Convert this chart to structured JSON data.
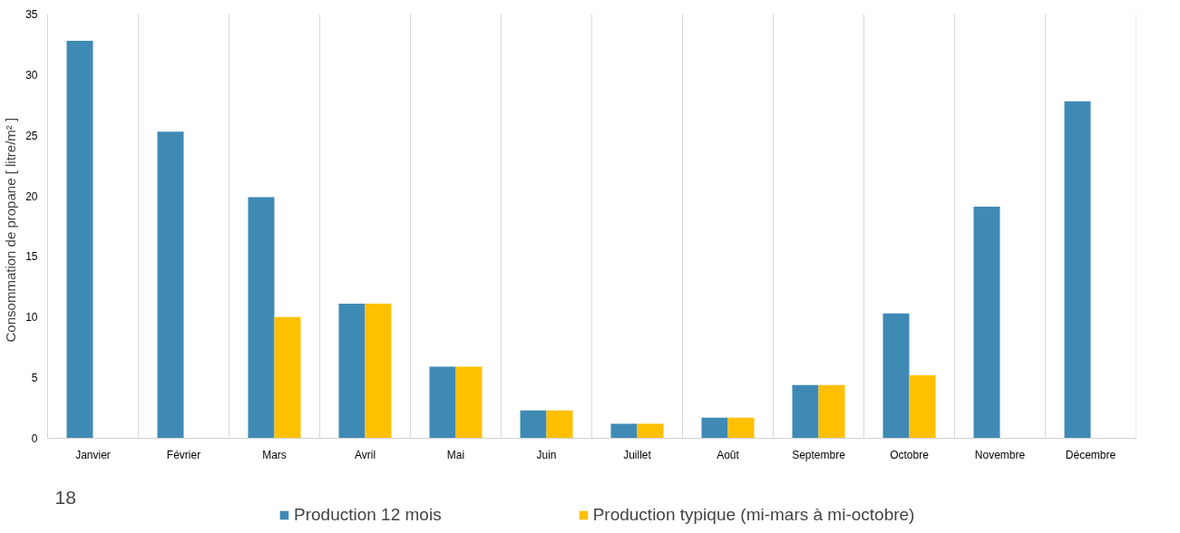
{
  "chart_data": {
    "type": "bar",
    "ylabel": "Consommation de propane   [ litre/m² ]",
    "categories": [
      "Janvier",
      "Février",
      "Mars",
      "Avril",
      "Mai",
      "Juin",
      "Juillet",
      "Août",
      "Septembre",
      "Octobre",
      "Novembre",
      "Décembre"
    ],
    "series": [
      {
        "name": "Production 12 mois",
        "color": "#3f8ab5",
        "values": [
          32.8,
          25.3,
          19.9,
          11.1,
          5.9,
          2.3,
          1.2,
          1.7,
          4.4,
          10.3,
          19.1,
          27.8
        ]
      },
      {
        "name": "Production typique (mi-mars à mi-octobre)",
        "color": "#ffc000",
        "values": [
          null,
          null,
          10.0,
          11.1,
          5.9,
          2.3,
          1.2,
          1.7,
          4.4,
          5.2,
          null,
          null
        ]
      }
    ],
    "ylim": [
      0,
      35
    ],
    "yticks": [
      0,
      5,
      10,
      15,
      20,
      25,
      30,
      35
    ],
    "grid": "x",
    "legend": "bottom",
    "annotations": [
      "18"
    ]
  }
}
